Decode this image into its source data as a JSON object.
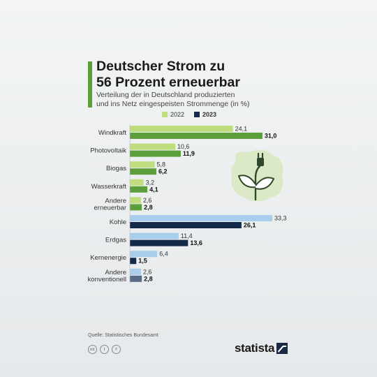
{
  "header": {
    "title_line1": "Deutscher Strom zu",
    "title_line2": "56 Prozent erneuerbar",
    "subtitle_line1": "Verteilung der in Deutschland produzierten",
    "subtitle_line2": "und ins Netz eingespeisten Strommenge (in %)"
  },
  "legend": {
    "year_2022": "2022",
    "year_2023": "2023"
  },
  "chart_data": {
    "type": "bar",
    "orientation": "horizontal",
    "categories": [
      [
        "Windkraft"
      ],
      [
        "Photovoltaik"
      ],
      [
        "Biogas"
      ],
      [
        "Wasserkraft"
      ],
      [
        "Andere",
        "erneuerbar"
      ],
      [
        "Kohle"
      ],
      [
        "Erdgas"
      ],
      [
        "Kernenergie"
      ],
      [
        "Andere",
        "konventionell"
      ]
    ],
    "groups": [
      "erneuerbar",
      "erneuerbar",
      "erneuerbar",
      "erneuerbar",
      "erneuerbar",
      "konventionell",
      "konventionell",
      "konventionell",
      "konventionell"
    ],
    "series": [
      {
        "name": "2022",
        "values": [
          24.1,
          10.6,
          5.8,
          3.2,
          2.6,
          33.3,
          11.4,
          6.4,
          2.6
        ]
      },
      {
        "name": "2023",
        "values": [
          31.0,
          11.9,
          6.2,
          4.1,
          2.8,
          26.1,
          13.6,
          1.5,
          2.8
        ]
      }
    ],
    "value_labels": {
      "2022": [
        "24,1",
        "10,6",
        "5,8",
        "3,2",
        "2,6",
        "33,3",
        "11,4",
        "6,4",
        "2,6"
      ],
      "2023": [
        "31,0",
        "11,9",
        "6,2",
        "4,1",
        "2,8",
        "26,1",
        "13,6",
        "1,5",
        "2,8"
      ]
    },
    "xlim": [
      0,
      33.3
    ],
    "grid": false,
    "legend_placement": "top",
    "colors": {
      "renewable_2022": "#bfdc7f",
      "renewable_2023": "#5d9e3c",
      "conventional_2022": "#a9cdec",
      "conventional_2023": "#142a4a",
      "conventional_2023_last": "#5a6a86"
    }
  },
  "footer": {
    "source": "Quelle: Statistisches Bundesamt",
    "logo": "statista",
    "license_icons": [
      "cc",
      "i",
      "="
    ]
  },
  "illustration": {
    "icon": "plant-plug-icon"
  }
}
